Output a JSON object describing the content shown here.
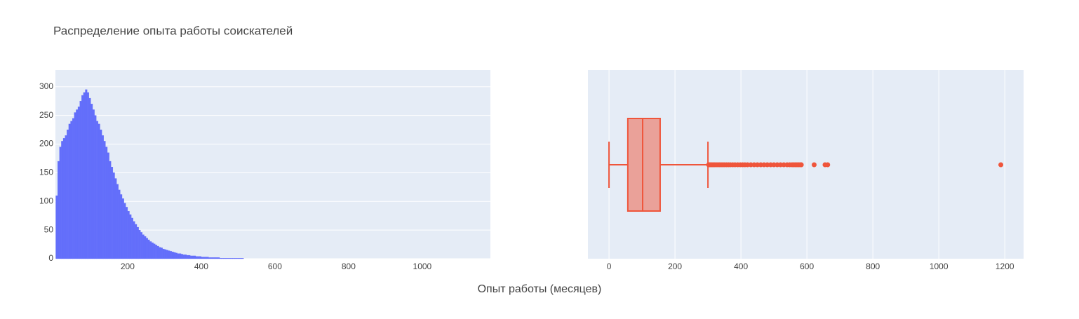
{
  "title": "Распределение опыта работы соискателей",
  "xlabel": "Опыт работы (месяцев)",
  "chart_data": [
    {
      "type": "histogram",
      "color": "#636efa",
      "bins": [
        5,
        10,
        15,
        20,
        25,
        30,
        35,
        40,
        45,
        50,
        55,
        60,
        65,
        70,
        75,
        80,
        85,
        90,
        95,
        100,
        105,
        110,
        115,
        120,
        125,
        130,
        135,
        140,
        145,
        150,
        155,
        160,
        165,
        170,
        175,
        180,
        185,
        190,
        195,
        200,
        205,
        210,
        215,
        220,
        225,
        230,
        235,
        240,
        245,
        250,
        255,
        260,
        265,
        270,
        275,
        280,
        285,
        290,
        295,
        300,
        305,
        310,
        315,
        320,
        325,
        330,
        335,
        340,
        345,
        350,
        355,
        360,
        365,
        370,
        375,
        380,
        385,
        390,
        395,
        400,
        405,
        410,
        415,
        420,
        425,
        430,
        435,
        440,
        445,
        450,
        455,
        460,
        465,
        470,
        475,
        480,
        485,
        490,
        495,
        500,
        505,
        510,
        515,
        520,
        525,
        530,
        535,
        540,
        545,
        550,
        555,
        560,
        565,
        570,
        575,
        580,
        585,
        590,
        595,
        600,
        605
      ],
      "values": [
        110,
        170,
        195,
        205,
        210,
        215,
        225,
        235,
        240,
        245,
        255,
        260,
        265,
        275,
        285,
        290,
        295,
        290,
        280,
        270,
        260,
        250,
        240,
        235,
        225,
        215,
        205,
        195,
        185,
        170,
        160,
        150,
        140,
        130,
        120,
        112,
        105,
        97,
        90,
        83,
        77,
        71,
        65,
        60,
        55,
        50,
        46,
        42,
        39,
        36,
        33,
        30,
        28,
        26,
        24,
        22,
        20,
        19,
        17,
        16,
        15,
        14,
        13,
        12,
        11,
        10,
        9,
        9,
        8,
        7,
        7,
        6,
        6,
        5,
        5,
        5,
        4,
        4,
        4,
        3,
        3,
        3,
        3,
        2,
        2,
        2,
        2,
        2,
        2,
        1,
        1,
        1,
        1,
        1,
        1,
        1,
        1,
        1,
        1,
        1,
        1,
        1,
        0,
        0,
        0,
        0,
        0,
        0,
        0,
        0,
        0,
        0,
        0,
        0,
        0,
        0,
        0,
        0,
        0,
        0
      ],
      "xlim": [
        4,
        1185
      ],
      "ylim": [
        0,
        329
      ],
      "xticks": [
        200,
        400,
        600,
        800,
        1000
      ],
      "yticks": [
        0,
        50,
        100,
        150,
        200,
        250,
        300
      ],
      "grid": true
    },
    {
      "type": "box",
      "color": "#ef553b",
      "whisker_low": 0,
      "q1": 57,
      "median": 102,
      "q3": 155,
      "whisker_high": 300,
      "outliers": [
        302,
        305,
        308,
        312,
        316,
        320,
        325,
        330,
        335,
        340,
        345,
        350,
        356,
        362,
        368,
        375,
        382,
        390,
        398,
        405,
        412,
        420,
        430,
        440,
        450,
        460,
        470,
        480,
        490,
        500,
        510,
        520,
        530,
        540,
        548,
        555,
        560,
        565,
        570,
        575,
        580,
        583,
        622,
        655,
        663,
        1188
      ],
      "xlim": [
        -64,
        1257
      ],
      "xticks": [
        0,
        200,
        400,
        600,
        800,
        1000,
        1200
      ],
      "grid": true
    }
  ]
}
